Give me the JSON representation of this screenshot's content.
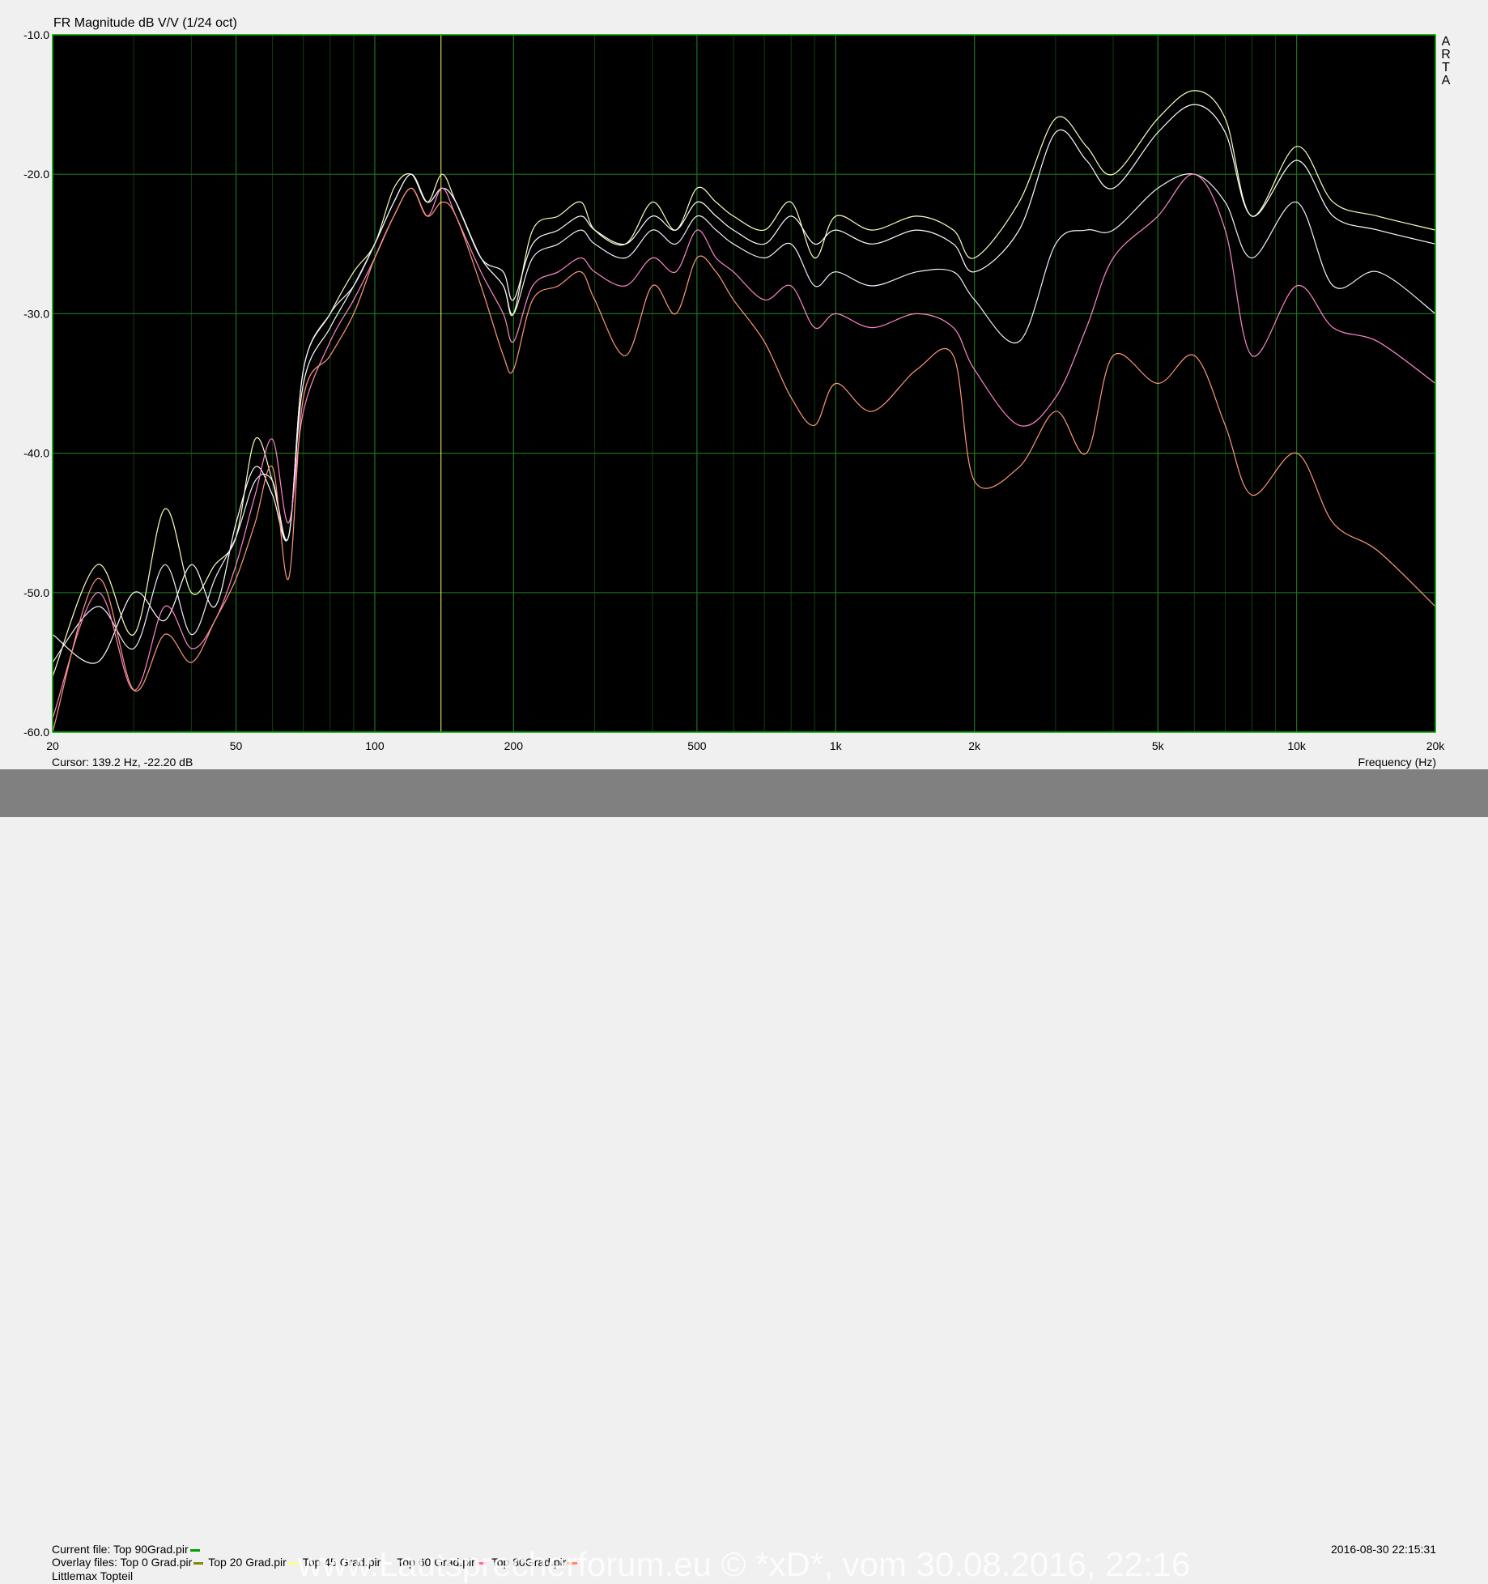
{
  "chart_data": {
    "type": "line",
    "title": "FR Magnitude dB V/V (1/24 oct)",
    "xlabel": "Frequency (Hz)",
    "ylabel": "",
    "xscale": "log",
    "xlim": [
      20,
      20000
    ],
    "ylim": [
      -60,
      -10
    ],
    "grid": true,
    "x_ticks": [
      20,
      50,
      100,
      200,
      500,
      1000,
      2000,
      5000,
      10000,
      20000
    ],
    "x_tick_labels": [
      "20",
      "50",
      "100",
      "200",
      "500",
      "1k",
      "2k",
      "5k",
      "10k",
      "20k"
    ],
    "y_ticks": [
      -60,
      -50,
      -40,
      -30,
      -20,
      -10
    ],
    "y_tick_labels": [
      "-60.0",
      "-50.0",
      "-40.0",
      "-30.0",
      "-20.0",
      "-10.0"
    ],
    "cursor_x": 139.2,
    "series": [
      {
        "color": "#ffffc0",
        "x": [
          20,
          25,
          30,
          35,
          40,
          45,
          50,
          55,
          60,
          65,
          70,
          80,
          90,
          100,
          110,
          120,
          130,
          140,
          150,
          170,
          190,
          200,
          220,
          250,
          280,
          300,
          350,
          400,
          450,
          500,
          550,
          600,
          700,
          800,
          900,
          1000,
          1200,
          1500,
          1800,
          2000,
          2500,
          3000,
          3500,
          4000,
          5000,
          6000,
          7000,
          8000,
          10000,
          12000,
          15000,
          20000
        ],
        "y": [
          -56,
          -48,
          -53,
          -44,
          -50,
          -48,
          -46,
          -39,
          -42,
          -46,
          -34,
          -30,
          -27,
          -25,
          -21,
          -20,
          -22,
          -20,
          -22,
          -26,
          -28,
          -30,
          -24,
          -23,
          -22,
          -24,
          -25,
          -22,
          -24,
          -21,
          -22,
          -23,
          -24,
          -22,
          -26,
          -23,
          -24,
          -23,
          -24,
          -26,
          -22,
          -16,
          -18,
          -20,
          -16,
          -14,
          -16,
          -23,
          -18,
          -22,
          -23,
          -24
        ]
      },
      {
        "color": "#ffffff",
        "x": [
          20,
          25,
          30,
          35,
          40,
          45,
          50,
          55,
          60,
          65,
          70,
          80,
          90,
          100,
          110,
          120,
          130,
          140,
          150,
          170,
          190,
          200,
          220,
          250,
          280,
          300,
          350,
          400,
          450,
          500,
          550,
          600,
          700,
          800,
          900,
          1000,
          1200,
          1500,
          1800,
          2000,
          2500,
          3000,
          3500,
          4000,
          5000,
          6000,
          7000,
          8000,
          10000,
          12000,
          15000,
          20000
        ],
        "y": [
          -53,
          -55,
          -50,
          -52,
          -48,
          -51,
          -45,
          -41,
          -43,
          -46,
          -35,
          -31,
          -28,
          -25,
          -22,
          -20,
          -22,
          -21,
          -22,
          -26,
          -27,
          -29,
          -25,
          -24,
          -23,
          -24,
          -25,
          -23,
          -24,
          -22,
          -23,
          -24,
          -25,
          -23,
          -25,
          -24,
          -25,
          -24,
          -25,
          -27,
          -24,
          -17,
          -19,
          -21,
          -17,
          -15,
          -17,
          -23,
          -19,
          -23,
          -24,
          -25
        ]
      },
      {
        "color": "#f0f0ff",
        "x": [
          20,
          25,
          30,
          35,
          40,
          45,
          50,
          55,
          60,
          65,
          70,
          80,
          90,
          100,
          110,
          120,
          130,
          140,
          150,
          170,
          190,
          200,
          220,
          250,
          280,
          300,
          350,
          400,
          450,
          500,
          550,
          600,
          700,
          800,
          900,
          1000,
          1200,
          1500,
          1800,
          2000,
          2500,
          3000,
          3500,
          4000,
          5000,
          6000,
          7000,
          8000,
          10000,
          12000,
          15000,
          20000
        ],
        "y": [
          -55,
          -51,
          -54,
          -48,
          -53,
          -49,
          -46,
          -42,
          -42,
          -46,
          -34,
          -30,
          -28,
          -25,
          -22,
          -20,
          -22,
          -21,
          -22,
          -26,
          -28,
          -30,
          -26,
          -25,
          -24,
          -25,
          -26,
          -24,
          -25,
          -23,
          -24,
          -25,
          -26,
          -25,
          -28,
          -27,
          -28,
          -27,
          -27,
          -29,
          -32,
          -25,
          -24,
          -24,
          -21,
          -20,
          -22,
          -26,
          -22,
          -28,
          -27,
          -30
        ]
      },
      {
        "color": "#ff88cc",
        "x": [
          20,
          25,
          30,
          35,
          40,
          45,
          50,
          55,
          60,
          65,
          70,
          80,
          90,
          100,
          110,
          120,
          130,
          140,
          150,
          170,
          190,
          200,
          220,
          250,
          280,
          300,
          350,
          400,
          450,
          500,
          550,
          600,
          700,
          800,
          900,
          1000,
          1200,
          1500,
          1800,
          2000,
          2500,
          3000,
          3500,
          4000,
          5000,
          6000,
          7000,
          8000,
          10000,
          12000,
          15000,
          20000
        ],
        "y": [
          -59,
          -50,
          -57,
          -51,
          -54,
          -52,
          -48,
          -43,
          -39,
          -45,
          -37,
          -32,
          -29,
          -26,
          -23,
          -21,
          -23,
          -21,
          -23,
          -27,
          -30,
          -32,
          -28,
          -27,
          -26,
          -27,
          -28,
          -26,
          -27,
          -24,
          -26,
          -27,
          -29,
          -28,
          -31,
          -30,
          -31,
          -30,
          -31,
          -34,
          -38,
          -36,
          -31,
          -26,
          -23,
          -20,
          -24,
          -33,
          -28,
          -31,
          -32,
          -35
        ]
      },
      {
        "color": "#ff9977",
        "x": [
          20,
          25,
          30,
          35,
          40,
          45,
          50,
          55,
          60,
          65,
          70,
          80,
          90,
          100,
          110,
          120,
          130,
          140,
          150,
          170,
          190,
          200,
          220,
          250,
          280,
          300,
          350,
          400,
          450,
          500,
          550,
          600,
          700,
          800,
          900,
          1000,
          1200,
          1500,
          1800,
          2000,
          2500,
          3000,
          3500,
          4000,
          5000,
          6000,
          7000,
          8000,
          10000,
          12000,
          15000,
          20000
        ],
        "y": [
          -60,
          -49,
          -57,
          -53,
          -55,
          -52,
          -49,
          -45,
          -41,
          -49,
          -36,
          -33,
          -30,
          -26,
          -23,
          -21,
          -23,
          -22,
          -23,
          -28,
          -33,
          -34,
          -29,
          -28,
          -27,
          -29,
          -33,
          -28,
          -30,
          -26,
          -27,
          -29,
          -32,
          -36,
          -38,
          -35,
          -37,
          -34,
          -33,
          -42,
          -41,
          -37,
          -40,
          -33,
          -35,
          -33,
          -38,
          -43,
          -40,
          -45,
          -47,
          -51
        ]
      }
    ]
  },
  "cursor_readout": "Cursor: 139.2 Hz, -22.20 dB",
  "frequency_label": "Frequency (Hz)",
  "arta_logo": "A\nR\nT\nA",
  "footer": {
    "current_file_label": "Current file: Top 90Grad.pir",
    "overlay_files_label": "Overlay files: Top 0 Grad.pir",
    "overlay_2": "Top 20 Grad.pir",
    "overlay_3": "Top 45 Grad.pir",
    "overlay_4": "Top 60 Grad.pir",
    "overlay_5": "Top 80Grad.pir",
    "project_name": "Littlemax Topteil",
    "timestamp": "2016-08-30   22:15:31",
    "watermark": "www.Lautsprecherforum.eu © *xD*, vom 30.08.2016, 22:16"
  },
  "colors": {
    "plot_bg": "#000000",
    "grid": "#1f6e1f",
    "plot_border": "#00aa00",
    "cursor": "#ffff66",
    "current_file_swatch": "#00a000",
    "overlay_swatch_1": "#888800",
    "overlay_swatch_2": "#ffff88",
    "overlay_swatch_3": "#ffffff",
    "overlay_swatch_4": "#ff66aa",
    "overlay_swatch_5": "#ff8866"
  }
}
